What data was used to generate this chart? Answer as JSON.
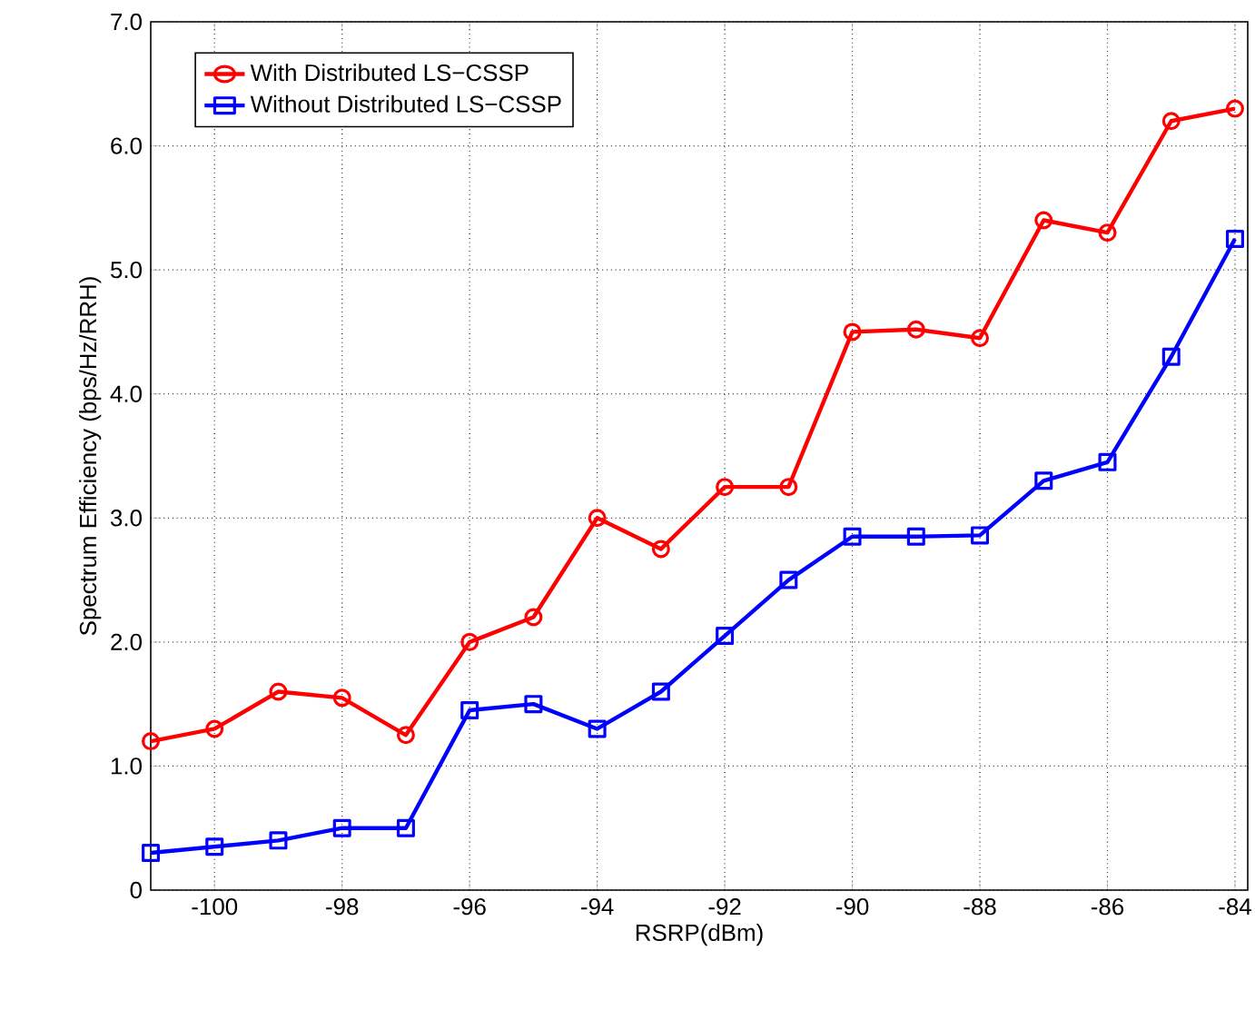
{
  "chart_data": {
    "type": "line",
    "xlabel": "RSRP(dBm)",
    "ylabel": "Spectrum Efficiency (bps/Hz/RRH)",
    "xlim": [
      -101,
      -83.8
    ],
    "ylim": [
      0,
      7
    ],
    "xticks": [
      -100,
      -98,
      -96,
      -94,
      -92,
      -90,
      -88,
      -86,
      -84
    ],
    "yticks": [
      0,
      {
        "value": 1,
        "label": "1.0"
      },
      {
        "value": 2,
        "label": "2.0"
      },
      {
        "value": 3,
        "label": "3.0"
      },
      {
        "value": 4,
        "label": "4.0"
      },
      {
        "value": 5,
        "label": "5.0"
      },
      {
        "value": 6,
        "label": "6.0"
      },
      {
        "value": 7,
        "label": "7.0"
      }
    ],
    "grid": true,
    "legend": "top left",
    "line_style": "solid",
    "series": [
      {
        "name": "With Distributed LS−CSSP",
        "color": "#ff0000",
        "marker": "circle",
        "x": [
          -101,
          -100,
          -99,
          -98,
          -97,
          -96,
          -95,
          -94,
          -93,
          -92,
          -91,
          -90,
          -89,
          -88,
          -87,
          -86,
          -85,
          -84
        ],
        "values": [
          1.2,
          1.3,
          1.6,
          1.55,
          1.25,
          2.0,
          2.2,
          3.0,
          2.75,
          3.25,
          3.25,
          4.5,
          4.52,
          4.45,
          5.4,
          5.3,
          6.2,
          6.3
        ]
      },
      {
        "name": "Without Distributed LS−CSSP",
        "color": "#0000ff",
        "marker": "square",
        "x": [
          -101,
          -100,
          -99,
          -98,
          -97,
          -96,
          -95,
          -94,
          -93,
          -92,
          -91,
          -90,
          -89,
          -88,
          -87,
          -86,
          -85,
          -84
        ],
        "values": [
          0.3,
          0.35,
          0.4,
          0.5,
          0.5,
          1.45,
          1.5,
          1.3,
          1.6,
          2.05,
          2.5,
          2.85,
          2.85,
          2.86,
          3.3,
          3.45,
          4.3,
          5.25
        ]
      }
    ]
  }
}
